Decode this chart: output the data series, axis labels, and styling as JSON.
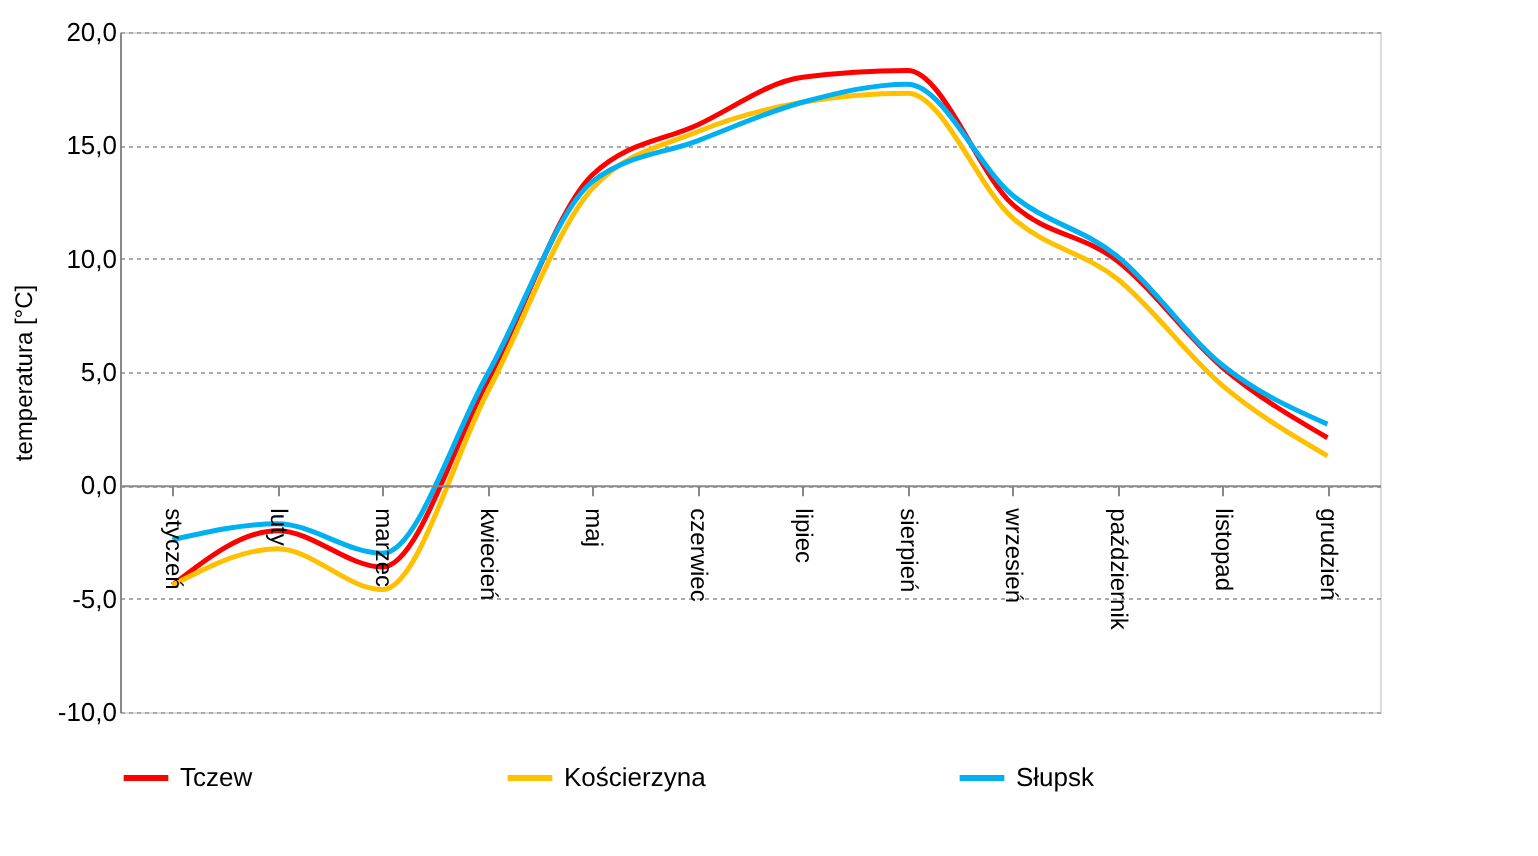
{
  "chart_data": {
    "type": "line",
    "ylabel": "temperatura [°C]",
    "categories": [
      "styczeń",
      "luty",
      "marzec",
      "kwiecień",
      "maj",
      "czerwiec",
      "lipiec",
      "sierpień",
      "wrzesień",
      "październik",
      "listopad",
      "grudzień"
    ],
    "series": [
      {
        "name": "Tczew",
        "color": "#ff0000",
        "values": [
          -4.4,
          -2.0,
          -3.6,
          4.6,
          13.7,
          15.9,
          18.0,
          18.3,
          12.4,
          9.9,
          5.2,
          2.1
        ]
      },
      {
        "name": "Kościerzyna",
        "color": "#ffc000",
        "values": [
          -4.4,
          -2.8,
          -4.6,
          4.1,
          13.1,
          15.6,
          16.9,
          17.3,
          11.8,
          9.1,
          4.4,
          1.3
        ]
      },
      {
        "name": "Słupsk",
        "color": "#00b0f0",
        "values": [
          -2.4,
          -1.7,
          -3.0,
          4.9,
          13.4,
          15.2,
          16.9,
          17.7,
          12.8,
          10.1,
          5.3,
          2.7
        ]
      }
    ],
    "ylim": [
      -10,
      20
    ],
    "yticks": [
      {
        "value": -10,
        "label": "-10,0"
      },
      {
        "value": -5,
        "label": "-5,0"
      },
      {
        "value": 0,
        "label": "0,0"
      },
      {
        "value": 5,
        "label": "5,0"
      },
      {
        "value": 10,
        "label": "10,0"
      },
      {
        "value": 15,
        "label": "15,0"
      },
      {
        "value": 20,
        "label": "20,0"
      }
    ],
    "grid": "y",
    "legend": "bottom",
    "marker": "none",
    "line_style": "solid"
  }
}
